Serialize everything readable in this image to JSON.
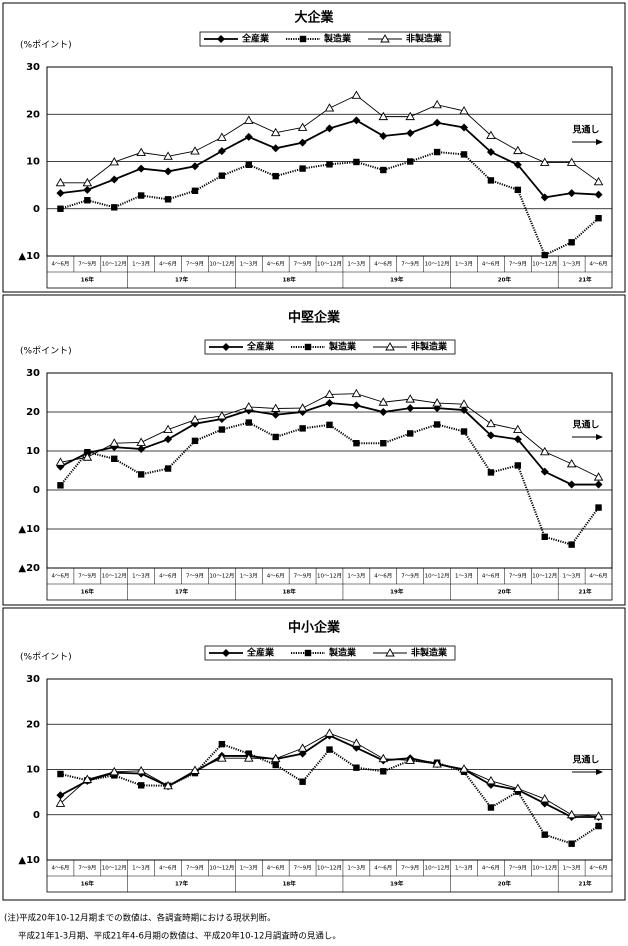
{
  "chart_data": [
    {
      "type": "line",
      "title": "大企業",
      "y_label": "(%ポイント)",
      "annotation": "見通し",
      "categories": [
        "4～6月",
        "7～9月",
        "10～12月",
        "1～3月",
        "4～6月",
        "7～9月",
        "10～12月",
        "1～3月",
        "4～6月",
        "7～9月",
        "10～12月",
        "1～3月",
        "4～6月",
        "7～9月",
        "10～12月",
        "1～3月",
        "4～6月",
        "7～9月",
        "10～12月",
        "1～3月",
        "4～6月"
      ],
      "category_groups": [
        "16年",
        null,
        null,
        "17年",
        null,
        null,
        null,
        "18年",
        null,
        null,
        null,
        "19年",
        null,
        null,
        null,
        "20年",
        null,
        null,
        null,
        "21年",
        null
      ],
      "ylim": [
        -10,
        30
      ],
      "yticks": [
        {
          "value": -10,
          "label": "▲10"
        },
        0,
        10,
        20,
        30
      ],
      "grid": true,
      "series": [
        {
          "name": "全産業",
          "color": "#000000",
          "marker": "diamond",
          "line_style": "solid",
          "values": [
            3.3,
            4,
            6.2,
            8.5,
            7.9,
            9,
            12.2,
            15.2,
            12.8,
            14,
            17,
            18.7,
            15.4,
            16,
            18.2,
            17.2,
            12,
            9.3,
            2.4,
            3.3,
            3
          ]
        },
        {
          "name": "製造業",
          "color": "#000000",
          "marker": "square",
          "line_style": "dotted",
          "values": [
            0,
            1.8,
            0.3,
            2.8,
            2,
            3.8,
            7,
            9.3,
            6.9,
            8.5,
            9.4,
            9.9,
            8.2,
            10,
            12,
            11.5,
            6,
            4,
            -9.8,
            -7.1,
            -2
          ]
        },
        {
          "name": "非製造業",
          "color": "#000000",
          "marker": "triangle",
          "line_style": "thin",
          "values": [
            5.5,
            5.5,
            9.9,
            11.9,
            11.1,
            12.2,
            15.1,
            18.7,
            16.1,
            17.2,
            21.3,
            24,
            19.5,
            19.5,
            22,
            20.7,
            15.5,
            12.3,
            9.8,
            9.8,
            5.7
          ]
        }
      ]
    },
    {
      "type": "line",
      "title": "中堅企業",
      "y_label": "(%ポイント)",
      "annotation": "見通し",
      "categories": [
        "4～6月",
        "7～9月",
        "10～12月",
        "1～3月",
        "4～6月",
        "7～9月",
        "10～12月",
        "1～3月",
        "4～6月",
        "7～9月",
        "10～12月",
        "1～3月",
        "4～6月",
        "7～9月",
        "10～12月",
        "1～3月",
        "4～6月",
        "7～9月",
        "10～12月",
        "1～3月",
        "4～6月"
      ],
      "category_groups": [
        "16年",
        null,
        null,
        "17年",
        null,
        null,
        null,
        "18年",
        null,
        null,
        null,
        "19年",
        null,
        null,
        null,
        "20年",
        null,
        null,
        null,
        "21年",
        null
      ],
      "ylim": [
        -20,
        30
      ],
      "yticks": [
        {
          "value": -20,
          "label": "▲20"
        },
        {
          "value": -10,
          "label": "▲10"
        },
        0,
        10,
        20,
        30
      ],
      "grid": true,
      "series": [
        {
          "name": "全産業",
          "color": "#000000",
          "marker": "diamond",
          "line_style": "solid",
          "values": [
            6,
            9.5,
            11,
            10.5,
            13,
            17,
            18.2,
            20.4,
            19.3,
            20,
            22.3,
            21.7,
            20,
            21,
            21,
            20.5,
            14,
            13,
            4.7,
            1.4,
            1.4
          ]
        },
        {
          "name": "製造業",
          "color": "#000000",
          "marker": "square",
          "line_style": "dotted",
          "values": [
            1.2,
            9.7,
            8,
            4,
            5.5,
            12.6,
            15.5,
            17.3,
            13.6,
            15.8,
            16.7,
            12,
            12,
            14.5,
            16.8,
            15,
            4.5,
            6.3,
            -12,
            -14,
            -4.5
          ]
        },
        {
          "name": "非製造業",
          "color": "#000000",
          "marker": "triangle",
          "line_style": "thin",
          "values": [
            7.1,
            8.4,
            12,
            12.2,
            15.5,
            18,
            19,
            21.3,
            20.9,
            21,
            24.5,
            24.7,
            22.5,
            23.3,
            22.3,
            22,
            17,
            15.5,
            9.8,
            6.7,
            3.3
          ]
        }
      ]
    },
    {
      "type": "line",
      "title": "中小企業",
      "y_label": "(%ポイント)",
      "annotation": "見通し",
      "categories": [
        "4～6月",
        "7～9月",
        "10～12月",
        "1～3月",
        "4～6月",
        "7～9月",
        "10～12月",
        "1～3月",
        "4～6月",
        "7～9月",
        "10～12月",
        "1～3月",
        "4～6月",
        "7～9月",
        "10～12月",
        "1～3月",
        "4～6月",
        "7～9月",
        "10～12月",
        "1～3月",
        "4～6月"
      ],
      "category_groups": [
        "16年",
        null,
        null,
        "17年",
        null,
        null,
        null,
        "18年",
        null,
        null,
        null,
        "19年",
        null,
        null,
        null,
        "20年",
        null,
        null,
        null,
        "21年",
        null
      ],
      "ylim": [
        -10,
        30
      ],
      "yticks": [
        {
          "value": -10,
          "label": "▲10"
        },
        0,
        10,
        20,
        30
      ],
      "grid": true,
      "series": [
        {
          "name": "全産業",
          "color": "#000000",
          "marker": "diamond",
          "line_style": "solid",
          "values": [
            4.3,
            7.5,
            9.3,
            9.1,
            6.3,
            9.5,
            13,
            13,
            12.3,
            13.5,
            17.5,
            14.8,
            12,
            12.5,
            11.2,
            10,
            6.6,
            5.5,
            2.5,
            -0.5,
            -0.5
          ]
        },
        {
          "name": "製造業",
          "color": "#000000",
          "marker": "square",
          "line_style": "dotted",
          "values": [
            9,
            7.6,
            8.7,
            6.5,
            6.4,
            9.2,
            15.6,
            13.5,
            11,
            7.3,
            14.4,
            10.4,
            9.6,
            12,
            11.5,
            9.5,
            1.6,
            5.1,
            -4.4,
            -6.4,
            -2.5
          ]
        },
        {
          "name": "非製造業",
          "color": "#000000",
          "marker": "triangle",
          "line_style": "thin",
          "values": [
            2.5,
            7.8,
            9.5,
            9.7,
            6.4,
            9.8,
            12.5,
            12.5,
            12.4,
            14.7,
            18,
            15.8,
            12.4,
            12,
            11.2,
            10.1,
            7.5,
            5.8,
            3.5,
            0,
            -0.3
          ]
        }
      ]
    }
  ],
  "notes": [
    "(注)平成20年10-12月期までの数値は、各調査時期における現状判断。",
    "平成21年1-3月期、平成21年4-6月期の数値は、平成20年10-12月調査時の見通し。"
  ]
}
